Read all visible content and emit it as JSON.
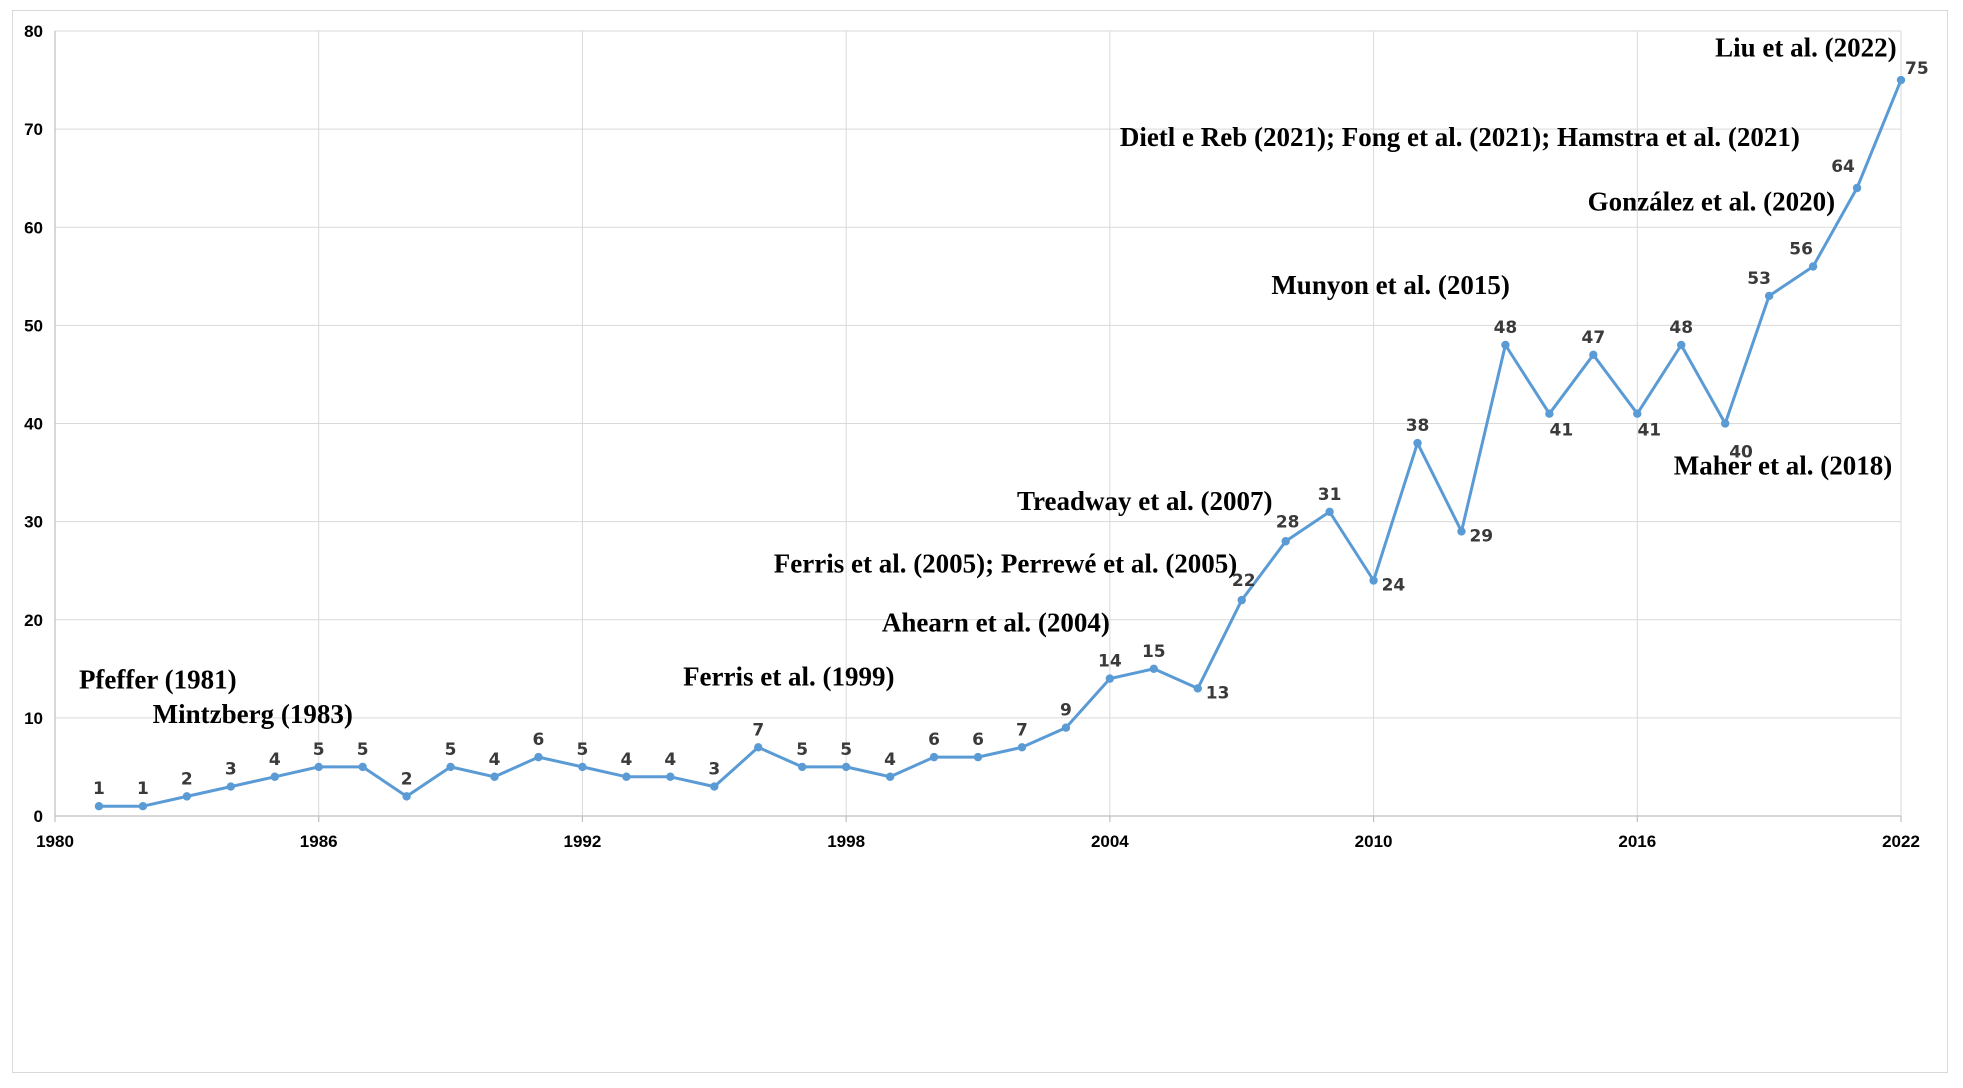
{
  "chart_data": {
    "type": "line",
    "title": "",
    "xlabel": "",
    "ylabel": "",
    "xlim": [
      1980,
      2022
    ],
    "ylim": [
      0,
      80
    ],
    "x_ticks": [
      "1980",
      "1986",
      "1992",
      "1998",
      "2004",
      "2010",
      "2016",
      "2022"
    ],
    "y_ticks": [
      "0",
      "10",
      "20",
      "30",
      "40",
      "50",
      "60",
      "70",
      "80"
    ],
    "grid": true,
    "legend": "none",
    "colors": {
      "series": "#5b9bd5",
      "grid": "#d9d9d9"
    },
    "series": [
      {
        "x": [
          1981,
          1982,
          1983,
          1984,
          1985,
          1986,
          1987,
          1988,
          1989,
          1990,
          1991,
          1992,
          1993,
          1994,
          1995,
          1996,
          1997,
          1998,
          1999,
          2000,
          2001,
          2002,
          2003,
          2004,
          2005,
          2006,
          2007,
          2008,
          2009,
          2010,
          2011,
          2012,
          2013,
          2014,
          2015,
          2016,
          2017,
          2018,
          2019,
          2020,
          2021,
          2022
        ],
        "values": [
          1,
          1,
          2,
          3,
          4,
          5,
          5,
          2,
          5,
          4,
          6,
          5,
          4,
          4,
          3,
          7,
          5,
          5,
          4,
          6,
          6,
          7,
          9,
          14,
          15,
          13,
          22,
          28,
          31,
          24,
          38,
          29,
          48,
          41,
          47,
          41,
          48,
          40,
          53,
          56,
          64,
          75
        ]
      }
    ],
    "annotations": [
      {
        "text": "Pfeffer (1981)",
        "x": 1981,
        "y": 13
      },
      {
        "text": "Mintzberg (1983)",
        "x": 1983,
        "y": 9.5
      },
      {
        "text": "Ferris et al. (1999)",
        "x": 1999,
        "y": 13.3
      },
      {
        "text": "Ahearn et al. (2004)",
        "x": 2004,
        "y": 18.8
      },
      {
        "text": "Ferris et al. (2005); Perrewé et al. (2005)",
        "x": 2005,
        "y": 24.8
      },
      {
        "text": "Treadway et al. (2007)",
        "x": 2007,
        "y": 31.2
      },
      {
        "text": "Munyon et al. (2015)",
        "x": 2015,
        "y": 53.2
      },
      {
        "text": "Maher et al. (2018)",
        "x": 2018,
        "y": 34.8
      },
      {
        "text": "González et al. (2020)",
        "x": 2020,
        "y": 61.7
      },
      {
        "text": "Dietl e Reb (2021); Fong et al. (2021); Hamstra et al. (2021)",
        "x": 2021,
        "y": 68.3
      },
      {
        "text": "Liu et al. (2022)",
        "x": 2022,
        "y": 77.4
      }
    ]
  }
}
